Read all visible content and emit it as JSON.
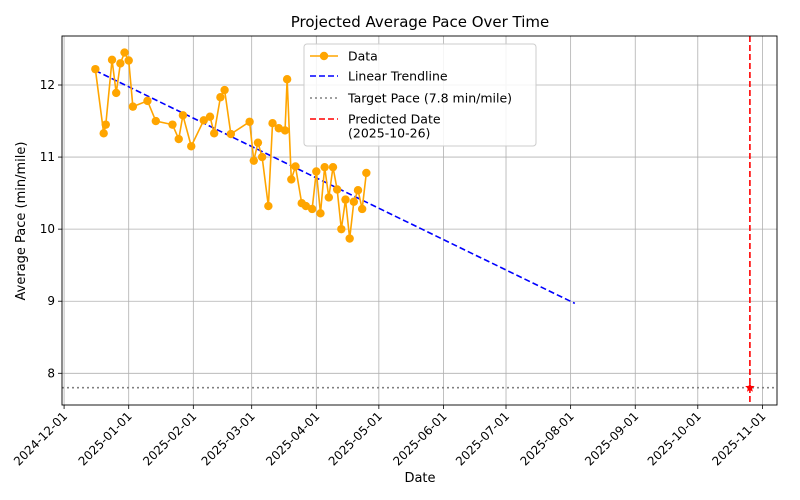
{
  "chart_data": {
    "type": "line",
    "title": "Projected Average Pace Over Time",
    "xlabel": "Date",
    "ylabel": "Average Pace (min/mile)",
    "xlim": [
      "2024-11-30",
      "2025-11-08"
    ],
    "ylim": [
      7.56,
      12.68
    ],
    "grid": true,
    "legend_position": "top-center",
    "x_ticks": [
      "2024-12-01",
      "2025-01-01",
      "2025-02-01",
      "2025-03-01",
      "2025-04-01",
      "2025-05-01",
      "2025-06-01",
      "2025-07-01",
      "2025-08-01",
      "2025-09-01",
      "2025-10-01",
      "2025-11-01"
    ],
    "y_ticks": [
      8,
      9,
      10,
      11,
      12
    ],
    "series": [
      {
        "name": "Data",
        "style": "line-marker",
        "color": "#FFA500",
        "x": [
          "2024-12-16",
          "2024-12-20",
          "2024-12-21",
          "2024-12-24",
          "2024-12-26",
          "2024-12-28",
          "2024-12-30",
          "2025-01-01",
          "2025-01-03",
          "2025-01-10",
          "2025-01-14",
          "2025-01-22",
          "2025-01-25",
          "2025-01-27",
          "2025-01-31",
          "2025-02-06",
          "2025-02-09",
          "2025-02-11",
          "2025-02-14",
          "2025-02-16",
          "2025-02-19",
          "2025-02-28",
          "2025-03-02",
          "2025-03-04",
          "2025-03-06",
          "2025-03-09",
          "2025-03-11",
          "2025-03-14",
          "2025-03-17",
          "2025-03-18",
          "2025-03-20",
          "2025-03-22",
          "2025-03-25",
          "2025-03-27",
          "2025-03-30",
          "2025-04-01",
          "2025-04-03",
          "2025-04-05",
          "2025-04-07",
          "2025-04-09",
          "2025-04-11",
          "2025-04-13",
          "2025-04-15",
          "2025-04-17",
          "2025-04-19",
          "2025-04-21",
          "2025-04-23",
          "2025-04-25"
        ],
        "y": [
          12.22,
          11.33,
          11.45,
          12.35,
          11.89,
          12.3,
          12.45,
          12.34,
          11.7,
          11.78,
          11.5,
          11.45,
          11.25,
          11.58,
          11.15,
          11.51,
          11.56,
          11.33,
          11.83,
          11.93,
          11.32,
          11.49,
          10.95,
          11.2,
          11.0,
          10.32,
          11.47,
          11.4,
          11.37,
          12.08,
          10.69,
          10.87,
          10.36,
          10.32,
          10.28,
          10.8,
          10.22,
          10.86,
          10.44,
          10.86,
          10.55,
          10.0,
          10.41,
          9.87,
          10.38,
          10.54,
          10.28,
          10.78
        ]
      },
      {
        "name": "Linear Trendline",
        "style": "dashed",
        "color": "#0000FF",
        "x": [
          "2024-12-16",
          "2025-08-03"
        ],
        "y": [
          12.2,
          8.97
        ]
      },
      {
        "name": "Target Pace (7.8 min/mile)",
        "style": "dotted-hline",
        "color": "#808080",
        "y": 7.8
      },
      {
        "name": "Predicted Date\n(2025-10-26)",
        "style": "dashed-vline",
        "color": "#FF0000",
        "x": "2025-10-26",
        "marker": {
          "x": "2025-10-26",
          "y": 7.8,
          "shape": "star"
        }
      }
    ]
  }
}
